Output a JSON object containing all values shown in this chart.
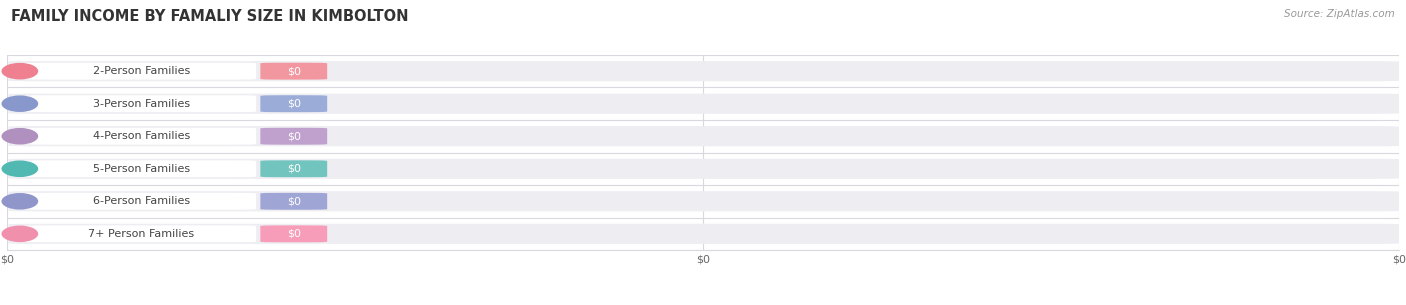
{
  "title": "FAMILY INCOME BY FAMALIY SIZE IN KIMBOLTON",
  "source_text": "Source: ZipAtlas.com",
  "categories": [
    "2-Person Families",
    "3-Person Families",
    "4-Person Families",
    "5-Person Families",
    "6-Person Families",
    "7+ Person Families"
  ],
  "values": [
    0,
    0,
    0,
    0,
    0,
    0
  ],
  "bar_colors": [
    "#f2979f",
    "#9bacd8",
    "#c0a0cc",
    "#72c4be",
    "#9fa5d5",
    "#f79dba"
  ],
  "dot_colors": [
    "#ee8090",
    "#8898cc",
    "#b090be",
    "#52b8b2",
    "#9095ca",
    "#f090ac"
  ],
  "label_text_color": "#444444",
  "value_label_color": "#ffffff",
  "row_bg_color": "#ededf2",
  "background_color": "#ffffff",
  "grid_color": "#d8d8e0",
  "figsize": [
    14.06,
    3.05
  ],
  "dpi": 100,
  "title_fontsize": 10.5,
  "label_fontsize": 8.0,
  "value_fontsize": 8.0,
  "source_fontsize": 7.5,
  "x_tick_labels": [
    "$0",
    "$0",
    "$0"
  ],
  "x_tick_positions": [
    0.0,
    0.5,
    1.0
  ]
}
